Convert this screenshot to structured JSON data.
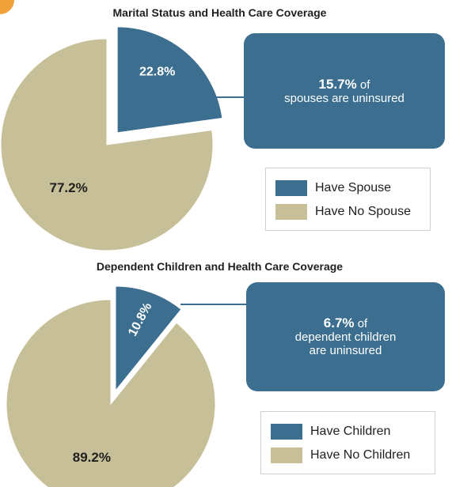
{
  "colors": {
    "have": "#3b6e8f",
    "have_not": "#c6bf98",
    "accent_corner": "#f0a23a"
  },
  "chart_data": [
    {
      "type": "pie",
      "title": "Marital Status and Health Care Coverage",
      "slices": [
        {
          "label": "Have Spouse",
          "value": 22.8,
          "value_label": "22.8%",
          "exploded": true,
          "color": "#3b6e8f"
        },
        {
          "label": "Have No Spouse",
          "value": 77.2,
          "value_label": "77.2%",
          "exploded": false,
          "color": "#c6bf98"
        }
      ],
      "legend_placement": "right",
      "callout": {
        "pct": "15.7%",
        "text_line1": "of",
        "text_line2": "spouses are uninsured",
        "text_line3": ""
      }
    },
    {
      "type": "pie",
      "title": "Dependent Children and Health Care Coverage",
      "slices": [
        {
          "label": "Have Children",
          "value": 10.8,
          "value_label": "10.8%",
          "exploded": true,
          "color": "#3b6e8f"
        },
        {
          "label": "Have No Children",
          "value": 89.2,
          "value_label": "89.2%",
          "exploded": false,
          "color": "#c6bf98"
        }
      ],
      "legend_placement": "right",
      "callout": {
        "pct": "6.7%",
        "text_line1": "of",
        "text_line2": "dependent children",
        "text_line3": "are uninsured"
      }
    }
  ]
}
